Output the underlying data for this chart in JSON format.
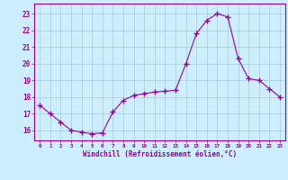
{
  "x": [
    0,
    1,
    2,
    3,
    4,
    5,
    6,
    7,
    8,
    9,
    10,
    11,
    12,
    13,
    14,
    15,
    16,
    17,
    18,
    19,
    20,
    21,
    22,
    23
  ],
  "y": [
    17.5,
    17.0,
    16.5,
    16.0,
    15.9,
    15.8,
    15.85,
    17.1,
    17.8,
    18.1,
    18.2,
    18.3,
    18.35,
    18.4,
    20.0,
    21.8,
    22.6,
    23.0,
    22.8,
    20.3,
    19.1,
    19.0,
    18.5,
    18.0
  ],
  "line_color": "#990099",
  "marker": "+",
  "marker_size": 4,
  "bg_color": "#cceeff",
  "grid_color": "#aacccc",
  "x_labels": [
    "0",
    "1",
    "2",
    "3",
    "4",
    "5",
    "6",
    "7",
    "8",
    "9",
    "10",
    "11",
    "12",
    "13",
    "14",
    "15",
    "16",
    "17",
    "18",
    "19",
    "20",
    "21",
    "22",
    "23"
  ],
  "ylabel_ticks": [
    16,
    17,
    18,
    19,
    20,
    21,
    22,
    23
  ],
  "xlim": [
    -0.5,
    23.5
  ],
  "ylim": [
    15.4,
    23.6
  ],
  "xlabel": "Windchill (Refroidissement éolien,°C)",
  "xlabel_color": "#990099",
  "tick_color": "#990099",
  "axis_color": "#990099"
}
